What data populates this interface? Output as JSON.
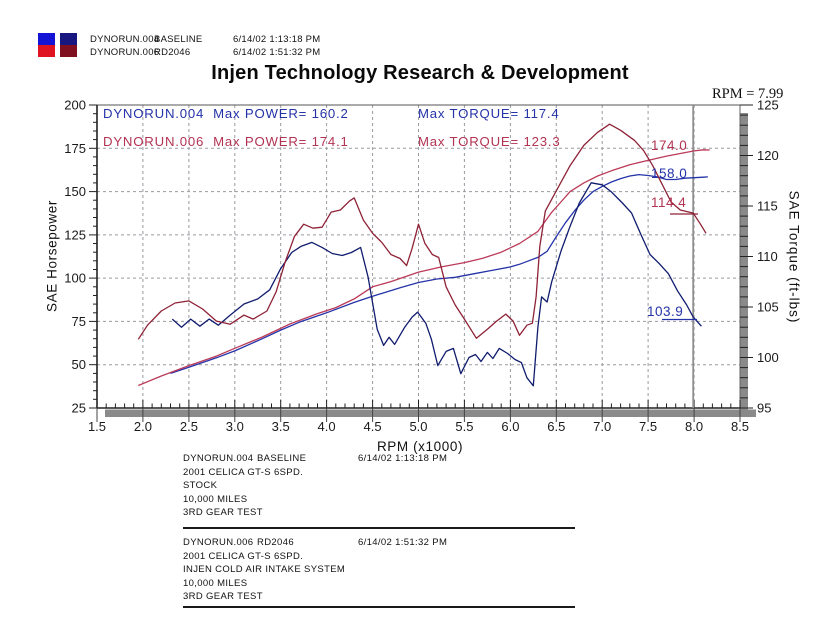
{
  "header": {
    "chips": [
      {
        "name": "run1-chip",
        "top_color": "#1414d6",
        "bottom_color": "#e01322"
      },
      {
        "name": "run2-chip",
        "top_color": "#17177f",
        "bottom_color": "#7f1020"
      }
    ],
    "runs": [
      {
        "file": "DYNORUN.004",
        "label": "BASELINE",
        "timestamp": "6/14/02 1:13:18 PM"
      },
      {
        "file": "DYNORUN.006",
        "label": "RD2046",
        "timestamp": "6/14/02 1:51:32 PM"
      }
    ]
  },
  "title": "Injen Technology Research & Development",
  "cursor": {
    "label": "RPM = 7.99",
    "rpm": 7.99,
    "readouts": [
      {
        "name": "red-power-at-cursor",
        "value": "174.0",
        "color": "#b23352"
      },
      {
        "name": "blue-power-at-cursor",
        "value": "158.0",
        "color": "#2433a8"
      },
      {
        "name": "red-torque-at-cursor",
        "value": "114.4",
        "color": "#b23352"
      },
      {
        "name": "blue-torque-at-cursor",
        "value": "103.9",
        "color": "#2433a8"
      }
    ]
  },
  "plot_legend": {
    "row1": {
      "name": "DYNORUN.004",
      "power": "Max POWER= 160.2",
      "torque": "Max TORQUE= 117.4",
      "color": "#2433a8"
    },
    "row2": {
      "name": "DYNORUN.006",
      "power": "Max POWER= 174.1",
      "torque": "Max TORQUE= 123.3",
      "color": "#b23352"
    }
  },
  "chart_data": {
    "type": "line",
    "title": "Injen Technology Research & Development",
    "xlabel": "RPM (x1000)",
    "ylabel_left": "SAE Horsepower",
    "ylabel_right": "SAE Torque (ft-lbs)",
    "x_range": [
      1.5,
      8.5
    ],
    "x_tick_step": 0.5,
    "x_minor_step": 0.1,
    "y_left_range": [
      25,
      200
    ],
    "y_left_tick_step": 25,
    "y_left_minor_step": 5,
    "y_right_range": [
      95,
      125
    ],
    "y_right_tick_step": 5,
    "y_right_minor_step": 1,
    "grid": true,
    "grid_color": "#9a9aa0",
    "shadow_color": "#8a8a8a",
    "cursor_rpm": 7.99,
    "cursor_color": "#8f8f8f",
    "series": [
      {
        "name": "DYNORUN.004 SAE Horsepower",
        "axis": "left",
        "color": "#2433a8",
        "max": 160.2,
        "points": [
          [
            2.3,
            45
          ],
          [
            2.5,
            48.5
          ],
          [
            2.8,
            54
          ],
          [
            3.0,
            58
          ],
          [
            3.3,
            65
          ],
          [
            3.5,
            70
          ],
          [
            3.7,
            74.5
          ],
          [
            4.0,
            80
          ],
          [
            4.3,
            86
          ],
          [
            4.5,
            89.5
          ],
          [
            4.8,
            94.5
          ],
          [
            5.0,
            97.5
          ],
          [
            5.2,
            99.5
          ],
          [
            5.4,
            100.5
          ],
          [
            5.6,
            102.5
          ],
          [
            5.8,
            104.5
          ],
          [
            6.0,
            106.5
          ],
          [
            6.1,
            108
          ],
          [
            6.2,
            110
          ],
          [
            6.3,
            112
          ],
          [
            6.4,
            115.5
          ],
          [
            6.5,
            124
          ],
          [
            6.6,
            132
          ],
          [
            6.7,
            139
          ],
          [
            6.8,
            145
          ],
          [
            6.9,
            150
          ],
          [
            7.0,
            153
          ],
          [
            7.1,
            155.5
          ],
          [
            7.2,
            157.5
          ],
          [
            7.3,
            159
          ],
          [
            7.4,
            159.8
          ],
          [
            7.5,
            159.3
          ],
          [
            7.6,
            158.5
          ],
          [
            7.7,
            157
          ],
          [
            7.8,
            157
          ],
          [
            7.9,
            157.7
          ],
          [
            8.0,
            158
          ],
          [
            8.1,
            158.3
          ],
          [
            8.15,
            158.5
          ]
        ]
      },
      {
        "name": "DYNORUN.006 SAE Horsepower",
        "axis": "left",
        "color": "#bb3a58",
        "max": 174.1,
        "points": [
          [
            1.95,
            38
          ],
          [
            2.2,
            43.5
          ],
          [
            2.5,
            49.5
          ],
          [
            2.8,
            55
          ],
          [
            3.0,
            59.5
          ],
          [
            3.3,
            66
          ],
          [
            3.6,
            73.5
          ],
          [
            3.9,
            79.5
          ],
          [
            4.1,
            83
          ],
          [
            4.3,
            88
          ],
          [
            4.5,
            95
          ],
          [
            4.7,
            98
          ],
          [
            5.0,
            103.5
          ],
          [
            5.25,
            106.5
          ],
          [
            5.5,
            109
          ],
          [
            5.7,
            111.5
          ],
          [
            5.9,
            115
          ],
          [
            6.1,
            120
          ],
          [
            6.3,
            127
          ],
          [
            6.45,
            138
          ],
          [
            6.55,
            144
          ],
          [
            6.65,
            150
          ],
          [
            6.8,
            155
          ],
          [
            6.95,
            159
          ],
          [
            7.1,
            162
          ],
          [
            7.3,
            165.5
          ],
          [
            7.5,
            168
          ],
          [
            7.7,
            170.5
          ],
          [
            7.9,
            172.5
          ],
          [
            8.0,
            173.5
          ],
          [
            8.1,
            174.1
          ],
          [
            8.17,
            174
          ]
        ]
      },
      {
        "name": "DYNORUN.004 SAE Torque",
        "axis": "right",
        "color": "#101c6e",
        "max": 117.4,
        "points": [
          [
            2.32,
            103.8
          ],
          [
            2.42,
            103
          ],
          [
            2.52,
            103.8
          ],
          [
            2.62,
            103.1
          ],
          [
            2.72,
            103.8
          ],
          [
            2.82,
            103.2
          ],
          [
            2.95,
            104.2
          ],
          [
            3.1,
            105.3
          ],
          [
            3.25,
            105.8
          ],
          [
            3.38,
            106.7
          ],
          [
            3.5,
            108.8
          ],
          [
            3.62,
            110.4
          ],
          [
            3.72,
            111
          ],
          [
            3.84,
            111.4
          ],
          [
            3.95,
            110.9
          ],
          [
            4.06,
            110.3
          ],
          [
            4.17,
            110.1
          ],
          [
            4.27,
            110.4
          ],
          [
            4.37,
            110.9
          ],
          [
            4.45,
            108
          ],
          [
            4.55,
            102.8
          ],
          [
            4.62,
            101.2
          ],
          [
            4.68,
            102
          ],
          [
            4.74,
            101.3
          ],
          [
            4.85,
            103
          ],
          [
            4.93,
            104
          ],
          [
            4.99,
            104.5
          ],
          [
            5.08,
            103.4
          ],
          [
            5.14,
            101.8
          ],
          [
            5.21,
            99.2
          ],
          [
            5.3,
            100.6
          ],
          [
            5.38,
            100.9
          ],
          [
            5.46,
            98.4
          ],
          [
            5.55,
            100
          ],
          [
            5.62,
            100.3
          ],
          [
            5.68,
            99.6
          ],
          [
            5.75,
            100.5
          ],
          [
            5.81,
            99.9
          ],
          [
            5.88,
            100.9
          ],
          [
            5.97,
            100.4
          ],
          [
            6.05,
            99.8
          ],
          [
            6.12,
            99.5
          ],
          [
            6.18,
            98
          ],
          [
            6.25,
            97.2
          ],
          [
            6.3,
            103
          ],
          [
            6.34,
            106
          ],
          [
            6.4,
            105.5
          ],
          [
            6.45,
            107.5
          ],
          [
            6.55,
            110.5
          ],
          [
            6.65,
            113
          ],
          [
            6.75,
            115.3
          ],
          [
            6.88,
            117.3
          ],
          [
            7.0,
            117.1
          ],
          [
            7.1,
            116.4
          ],
          [
            7.22,
            115.3
          ],
          [
            7.32,
            114.3
          ],
          [
            7.42,
            112.2
          ],
          [
            7.52,
            110.2
          ],
          [
            7.62,
            109.3
          ],
          [
            7.72,
            108.3
          ],
          [
            7.82,
            106.6
          ],
          [
            7.92,
            105.2
          ],
          [
            7.99,
            104
          ],
          [
            8.08,
            103.1
          ]
        ]
      },
      {
        "name": "DYNORUN.006 SAE Torque",
        "axis": "right",
        "color": "#8e2236",
        "max": 123.3,
        "points": [
          [
            1.95,
            101.8
          ],
          [
            2.05,
            103.2
          ],
          [
            2.2,
            104.6
          ],
          [
            2.35,
            105.4
          ],
          [
            2.5,
            105.6
          ],
          [
            2.65,
            104.8
          ],
          [
            2.8,
            103.6
          ],
          [
            2.95,
            103.3
          ],
          [
            3.1,
            104.2
          ],
          [
            3.2,
            103.8
          ],
          [
            3.35,
            104.6
          ],
          [
            3.45,
            106.5
          ],
          [
            3.55,
            109.5
          ],
          [
            3.65,
            112
          ],
          [
            3.75,
            113.2
          ],
          [
            3.85,
            112.8
          ],
          [
            3.95,
            112.9
          ],
          [
            4.05,
            114.4
          ],
          [
            4.15,
            114.6
          ],
          [
            4.25,
            115.5
          ],
          [
            4.3,
            115.8
          ],
          [
            4.4,
            113.6
          ],
          [
            4.5,
            112.3
          ],
          [
            4.6,
            111.4
          ],
          [
            4.7,
            110.2
          ],
          [
            4.8,
            109.8
          ],
          [
            4.87,
            109.1
          ],
          [
            4.93,
            110.8
          ],
          [
            5.0,
            113.2
          ],
          [
            5.07,
            111.3
          ],
          [
            5.15,
            110.2
          ],
          [
            5.22,
            109.9
          ],
          [
            5.3,
            107
          ],
          [
            5.4,
            105.2
          ],
          [
            5.5,
            103.8
          ],
          [
            5.63,
            101.9
          ],
          [
            5.75,
            102.8
          ],
          [
            5.85,
            103.6
          ],
          [
            5.95,
            104.3
          ],
          [
            6.03,
            103.6
          ],
          [
            6.1,
            102.2
          ],
          [
            6.18,
            103.2
          ],
          [
            6.24,
            103.4
          ],
          [
            6.28,
            106
          ],
          [
            6.32,
            111
          ],
          [
            6.38,
            114.5
          ],
          [
            6.5,
            116.5
          ],
          [
            6.65,
            119
          ],
          [
            6.8,
            121
          ],
          [
            6.95,
            122.3
          ],
          [
            7.08,
            123.1
          ],
          [
            7.2,
            122.5
          ],
          [
            7.35,
            121.5
          ],
          [
            7.45,
            120.5
          ],
          [
            7.55,
            119
          ],
          [
            7.65,
            117.2
          ],
          [
            7.75,
            115.4
          ],
          [
            7.85,
            114.6
          ],
          [
            7.99,
            114.3
          ],
          [
            8.07,
            113.2
          ],
          [
            8.13,
            112.3
          ]
        ]
      }
    ]
  },
  "axes": {
    "x_title": "RPM (x1000)",
    "y_left_title": "SAE Horsepower",
    "y_right_title": "SAE Torque (ft-lbs)"
  },
  "footer": {
    "blocks": [
      {
        "file": "DYNORUN.004",
        "label": "BASELINE",
        "timestamp": "6/14/02 1:13:18 PM",
        "lines": [
          "2001 CELICA GT-S 6SPD.",
          "STOCK",
          "10,000 MILES",
          "3RD GEAR TEST"
        ]
      },
      {
        "file": "DYNORUN.006",
        "label": "RD2046",
        "timestamp": "6/14/02 1:51:32 PM",
        "lines": [
          "2001 CELICA GT-S 6SPD.",
          "INJEN COLD AIR INTAKE SYSTEM",
          "10,000 MILES",
          "3RD GEAR TEST"
        ]
      }
    ]
  }
}
